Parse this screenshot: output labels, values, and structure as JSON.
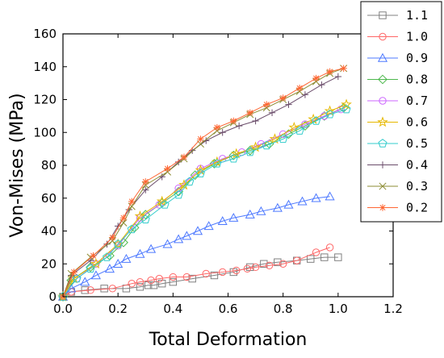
{
  "chart_data": {
    "type": "line",
    "title": "",
    "xlabel": "Total Deformation",
    "ylabel": "Von-Mises (MPa)",
    "xlim": [
      0.0,
      1.2
    ],
    "ylim": [
      0,
      160
    ],
    "xticks": [
      "0.0",
      "0.2",
      "0.4",
      "0.6",
      "0.8",
      "1.0",
      "1.2"
    ],
    "yticks": [
      "0",
      "20",
      "40",
      "60",
      "80",
      "100",
      "120",
      "140",
      "160"
    ],
    "grid": false,
    "legend_position": "right",
    "series": [
      {
        "name": "1.1",
        "color": "#808080",
        "marker": "square",
        "x": [
          0,
          0.03,
          0.08,
          0.15,
          0.23,
          0.28,
          0.31,
          0.33,
          0.36,
          0.4,
          0.47,
          0.55,
          0.62,
          0.68,
          0.73,
          0.78,
          0.85,
          0.9,
          0.95,
          1.0
        ],
        "y": [
          0,
          3,
          4,
          5,
          5,
          6,
          7,
          7,
          8,
          9,
          11,
          13,
          15,
          18,
          20,
          21,
          22,
          23,
          24,
          24
        ]
      },
      {
        "name": "1.0",
        "color": "#ff6666",
        "marker": "circle",
        "x": [
          0,
          0.03,
          0.1,
          0.18,
          0.25,
          0.28,
          0.32,
          0.35,
          0.4,
          0.45,
          0.52,
          0.58,
          0.63,
          0.67,
          0.7,
          0.75,
          0.8,
          0.85,
          0.92,
          0.97
        ],
        "y": [
          0,
          3,
          4,
          5,
          8,
          9,
          10,
          11,
          12,
          12,
          14,
          15,
          16,
          17,
          18,
          19,
          20,
          22,
          27,
          30
        ]
      },
      {
        "name": "0.9",
        "color": "#4d79ff",
        "marker": "triangle",
        "x": [
          0,
          0.03,
          0.08,
          0.12,
          0.17,
          0.2,
          0.23,
          0.28,
          0.32,
          0.38,
          0.42,
          0.45,
          0.49,
          0.53,
          0.58,
          0.62,
          0.68,
          0.72,
          0.78,
          0.82,
          0.87,
          0.92,
          0.97
        ],
        "y": [
          0,
          5,
          9,
          13,
          17,
          20,
          23,
          26,
          29,
          32,
          35,
          37,
          40,
          43,
          46,
          48,
          50,
          52,
          54,
          56,
          58,
          60,
          61
        ]
      },
      {
        "name": "0.8",
        "color": "#4db84d",
        "marker": "diamond",
        "x": [
          0,
          0.03,
          0.1,
          0.17,
          0.22,
          0.26,
          0.3,
          0.36,
          0.42,
          0.48,
          0.55,
          0.62,
          0.68,
          0.75,
          0.82,
          0.88,
          0.95,
          1.02
        ],
        "y": [
          0,
          10,
          18,
          25,
          33,
          42,
          50,
          57,
          64,
          74,
          81,
          86,
          89,
          93,
          99,
          104,
          110,
          115
        ]
      },
      {
        "name": "0.7",
        "color": "#cc66ff",
        "marker": "circle",
        "x": [
          0,
          0.05,
          0.12,
          0.2,
          0.28,
          0.35,
          0.42,
          0.5,
          0.58,
          0.65,
          0.72,
          0.8,
          0.88,
          0.95,
          1.01
        ],
        "y": [
          0,
          11,
          20,
          31,
          48,
          56,
          66,
          78,
          84,
          88,
          93,
          99,
          105,
          110,
          114
        ]
      },
      {
        "name": "0.6",
        "color": "#e6b800",
        "marker": "star",
        "x": [
          0,
          0.04,
          0.12,
          0.2,
          0.28,
          0.36,
          0.44,
          0.5,
          0.56,
          0.63,
          0.7,
          0.77,
          0.84,
          0.91,
          0.97,
          1.03
        ],
        "y": [
          0,
          11,
          20,
          32,
          49,
          58,
          68,
          77,
          82,
          87,
          91,
          96,
          103,
          108,
          113,
          117
        ]
      },
      {
        "name": "0.5",
        "color": "#33cccc",
        "marker": "pentagon",
        "x": [
          0,
          0.05,
          0.1,
          0.16,
          0.2,
          0.25,
          0.3,
          0.37,
          0.42,
          0.46,
          0.5,
          0.56,
          0.62,
          0.68,
          0.74,
          0.8,
          0.86,
          0.92,
          0.97,
          1.03
        ],
        "y": [
          0,
          11,
          17,
          24,
          32,
          41,
          47,
          56,
          62,
          70,
          75,
          81,
          84,
          88,
          92,
          96,
          101,
          107,
          111,
          114
        ]
      },
      {
        "name": "0.4",
        "color": "#6b4d6b",
        "marker": "plus",
        "x": [
          0,
          0.03,
          0.1,
          0.16,
          0.2,
          0.24,
          0.3,
          0.36,
          0.42,
          0.47,
          0.52,
          0.58,
          0.64,
          0.7,
          0.76,
          0.82,
          0.88,
          0.94,
          1.0
        ],
        "y": [
          0,
          13,
          22,
          32,
          43,
          53,
          65,
          73,
          82,
          89,
          95,
          100,
          104,
          107,
          112,
          117,
          123,
          129,
          134
        ]
      },
      {
        "name": "0.3",
        "color": "#8c8c33",
        "marker": "x",
        "x": [
          0,
          0.03,
          0.1,
          0.18,
          0.22,
          0.25,
          0.3,
          0.38,
          0.44,
          0.5,
          0.56,
          0.62,
          0.68,
          0.74,
          0.8,
          0.86,
          0.92,
          0.97,
          1.02
        ],
        "y": [
          0,
          14,
          24,
          34,
          45,
          55,
          68,
          76,
          84,
          93,
          101,
          106,
          111,
          115,
          120,
          125,
          131,
          136,
          139
        ]
      },
      {
        "name": "0.2",
        "color": "#ff6633",
        "marker": "asterisk",
        "x": [
          0,
          0.04,
          0.11,
          0.18,
          0.22,
          0.25,
          0.3,
          0.38,
          0.44,
          0.5,
          0.56,
          0.62,
          0.68,
          0.74,
          0.8,
          0.86,
          0.92,
          0.97,
          1.02
        ],
        "y": [
          0,
          15,
          25,
          36,
          48,
          58,
          70,
          78,
          85,
          96,
          103,
          107,
          112,
          117,
          121,
          127,
          133,
          137,
          139
        ]
      }
    ]
  }
}
